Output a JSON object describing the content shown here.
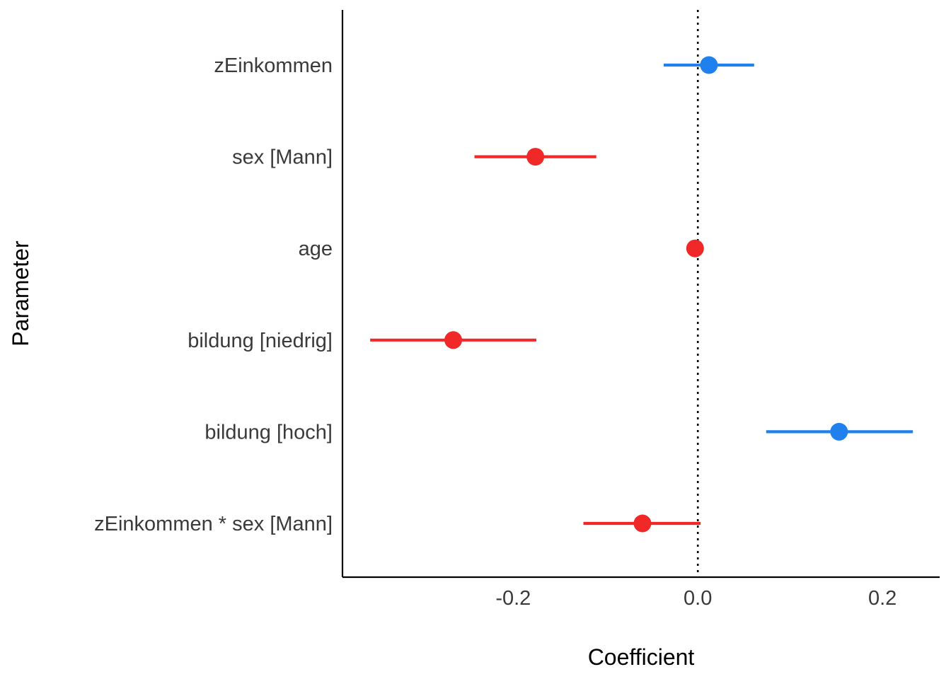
{
  "chart_data": {
    "type": "scatter",
    "subtype": "coefficient-forest-plot",
    "title": "",
    "xlabel": "Coefficient",
    "ylabel": "Parameter",
    "xlim": [
      -0.385,
      0.262
    ],
    "x_ticks": [
      -0.2,
      0.0,
      0.2
    ],
    "x_tick_labels": [
      "-0.2",
      "0.0",
      "0.2"
    ],
    "reference_line": {
      "x": 0.0,
      "style": "dotted",
      "color": "#000000"
    },
    "grid": false,
    "legend": "none",
    "colors": {
      "positive": "#2080ee",
      "negative": "#f02828"
    },
    "parameters": [
      {
        "label": "zEinkommen",
        "estimate": 0.012,
        "ci_low": -0.037,
        "ci_high": 0.061
      },
      {
        "label": "sex [Mann]",
        "estimate": -0.176,
        "ci_low": -0.242,
        "ci_high": -0.11
      },
      {
        "label": "age",
        "estimate": -0.003,
        "ci_low": -0.005,
        "ci_high": -0.001
      },
      {
        "label": "bildung [niedrig]",
        "estimate": -0.265,
        "ci_low": -0.355,
        "ci_high": -0.175
      },
      {
        "label": "bildung [hoch]",
        "estimate": 0.153,
        "ci_low": 0.074,
        "ci_high": 0.233
      },
      {
        "label": "zEinkommen * sex [Mann]",
        "estimate": -0.06,
        "ci_low": -0.124,
        "ci_high": 0.003
      }
    ]
  }
}
